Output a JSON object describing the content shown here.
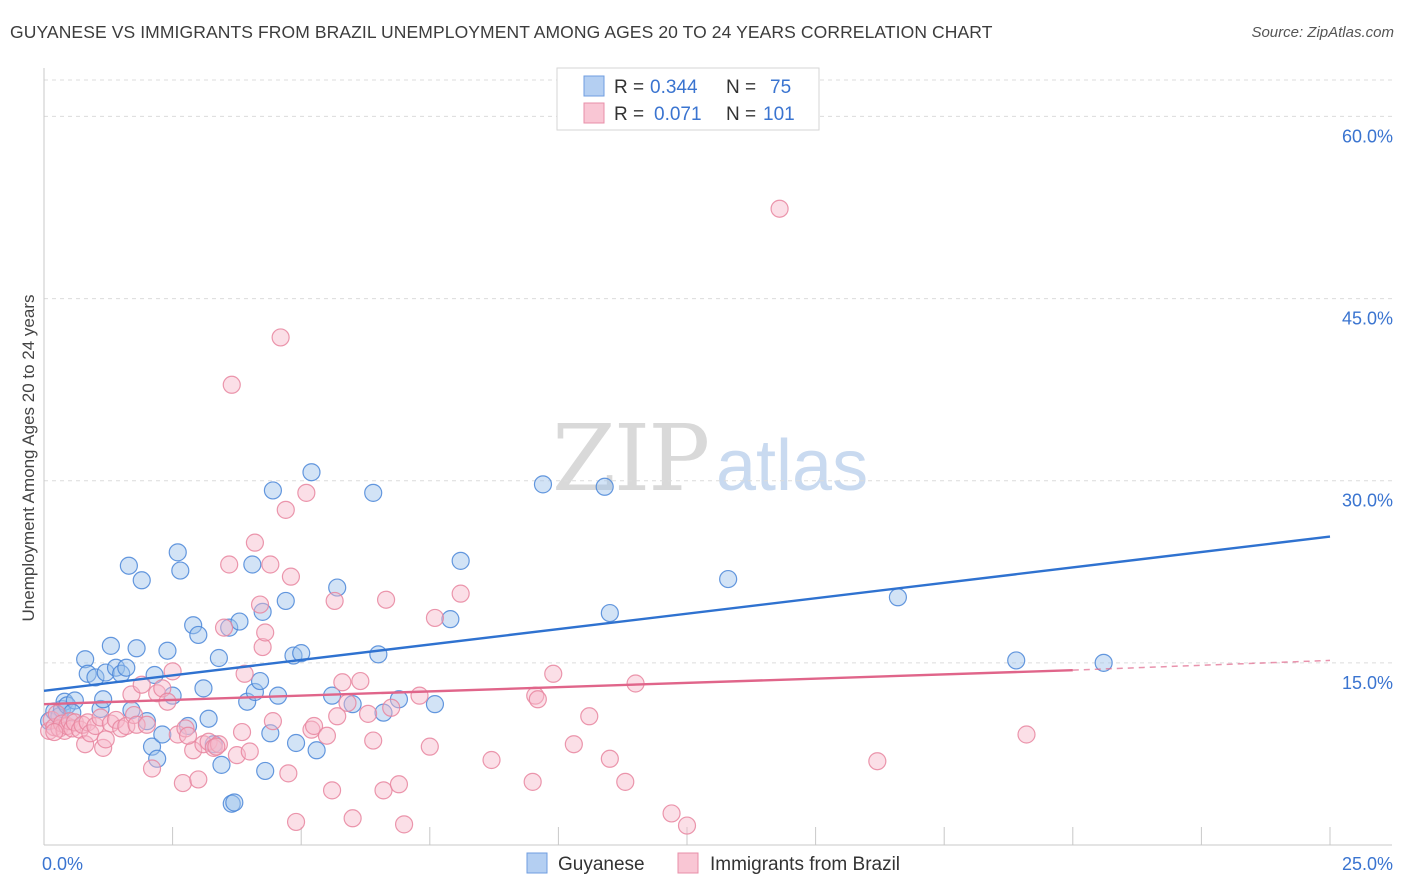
{
  "chart_data": {
    "type": "scatter",
    "title": "GUYANESE VS IMMIGRANTS FROM BRAZIL UNEMPLOYMENT AMONG AGES 20 TO 24 YEARS CORRELATION CHART",
    "source": "Source: ZipAtlas.com",
    "xlabel": "",
    "ylabel": "Unemployment Among Ages 20 to 24 years",
    "xlim": [
      0,
      25
    ],
    "ylim": [
      0,
      63
    ],
    "x_tick_labels": [
      {
        "value": 0,
        "label": "0.0%"
      },
      {
        "value": 25,
        "label": "25.0%"
      }
    ],
    "y_tick_labels": [
      {
        "value": 15,
        "label": "15.0%"
      },
      {
        "value": 30,
        "label": "30.0%"
      },
      {
        "value": 45,
        "label": "45.0%"
      },
      {
        "value": 60,
        "label": "60.0%"
      }
    ],
    "watermark": {
      "part1": "ZIP",
      "part2": "atlas"
    },
    "legend_stats": [
      {
        "r_label": "R =",
        "r_value": "0.344",
        "n_label": "N =",
        "n_value": "75"
      },
      {
        "r_label": "R =",
        "r_value": "0.071",
        "n_label": "N =",
        "n_value": "101"
      }
    ],
    "series": [
      {
        "name": "Guyanese",
        "color": "#4a86d8",
        "fill": "#9cc0ec",
        "line_color": "#2f72d0",
        "trend": {
          "x0": 0,
          "y0": 12.7,
          "x1": 25,
          "y1": 25.4
        },
        "points": [
          [
            0.1,
            10.2
          ],
          [
            0.2,
            11.0
          ],
          [
            0.3,
            10.6
          ],
          [
            0.35,
            11.2
          ],
          [
            0.4,
            11.8
          ],
          [
            0.45,
            11.5
          ],
          [
            0.6,
            11.9
          ],
          [
            0.55,
            10.9
          ],
          [
            0.8,
            15.3
          ],
          [
            0.85,
            14.1
          ],
          [
            1.0,
            13.8
          ],
          [
            1.1,
            11.2
          ],
          [
            1.15,
            12.0
          ],
          [
            1.2,
            14.2
          ],
          [
            1.3,
            16.4
          ],
          [
            1.4,
            14.6
          ],
          [
            1.5,
            14.1
          ],
          [
            1.6,
            14.6
          ],
          [
            1.65,
            23.0
          ],
          [
            1.8,
            16.2
          ],
          [
            1.9,
            21.8
          ],
          [
            2.0,
            10.2
          ],
          [
            2.1,
            8.1
          ],
          [
            2.15,
            14.0
          ],
          [
            2.2,
            7.1
          ],
          [
            2.3,
            9.1
          ],
          [
            2.4,
            16.0
          ],
          [
            2.5,
            12.3
          ],
          [
            2.6,
            24.1
          ],
          [
            2.65,
            22.6
          ],
          [
            2.8,
            9.8
          ],
          [
            2.9,
            18.1
          ],
          [
            3.0,
            17.3
          ],
          [
            3.1,
            12.9
          ],
          [
            3.2,
            10.4
          ],
          [
            3.3,
            8.3
          ],
          [
            3.4,
            15.4
          ],
          [
            3.45,
            6.6
          ],
          [
            3.6,
            17.9
          ],
          [
            3.65,
            3.4
          ],
          [
            3.7,
            3.5
          ],
          [
            3.8,
            18.4
          ],
          [
            3.95,
            11.8
          ],
          [
            4.05,
            23.1
          ],
          [
            4.1,
            12.6
          ],
          [
            4.2,
            13.5
          ],
          [
            4.25,
            19.2
          ],
          [
            4.3,
            6.1
          ],
          [
            4.4,
            9.2
          ],
          [
            4.45,
            29.2
          ],
          [
            4.55,
            12.3
          ],
          [
            4.7,
            20.1
          ],
          [
            4.85,
            15.6
          ],
          [
            5.0,
            15.8
          ],
          [
            5.2,
            30.7
          ],
          [
            5.3,
            7.8
          ],
          [
            5.6,
            12.3
          ],
          [
            5.7,
            21.2
          ],
          [
            6.0,
            11.6
          ],
          [
            6.4,
            29.0
          ],
          [
            6.5,
            15.7
          ],
          [
            6.6,
            10.9
          ],
          [
            6.9,
            12.0
          ],
          [
            7.6,
            11.6
          ],
          [
            7.9,
            18.6
          ],
          [
            8.1,
            23.4
          ],
          [
            9.7,
            29.7
          ],
          [
            10.9,
            29.5
          ],
          [
            11.0,
            19.1
          ],
          [
            13.3,
            21.9
          ],
          [
            16.6,
            20.4
          ],
          [
            18.9,
            15.2
          ],
          [
            20.6,
            15.0
          ],
          [
            1.7,
            11.1
          ],
          [
            4.9,
            8.4
          ]
        ]
      },
      {
        "name": "Immigrants from Brazil",
        "color": "#e8859f",
        "fill": "#f6b7c9",
        "line_color": "#e0658a",
        "trend": {
          "x0": 0,
          "y0": 11.6,
          "x1": 20,
          "y1": 14.4
        },
        "trend_dashed": {
          "x0": 20,
          "y0": 14.4,
          "x1": 25,
          "y1": 15.2
        },
        "points": [
          [
            0.1,
            9.4
          ],
          [
            0.15,
            10.3
          ],
          [
            0.2,
            9.7
          ],
          [
            0.25,
            10.8
          ],
          [
            0.3,
            9.6
          ],
          [
            0.35,
            10.0
          ],
          [
            0.4,
            9.4
          ],
          [
            0.45,
            9.8
          ],
          [
            0.5,
            10.2
          ],
          [
            0.55,
            9.6
          ],
          [
            0.6,
            10.1
          ],
          [
            0.7,
            9.5
          ],
          [
            0.75,
            9.9
          ],
          [
            0.8,
            8.3
          ],
          [
            0.85,
            10.1
          ],
          [
            0.9,
            9.2
          ],
          [
            1.0,
            9.8
          ],
          [
            1.1,
            10.5
          ],
          [
            1.15,
            8.0
          ],
          [
            1.3,
            10.0
          ],
          [
            1.4,
            10.3
          ],
          [
            1.5,
            9.6
          ],
          [
            1.6,
            9.8
          ],
          [
            1.7,
            12.4
          ],
          [
            1.75,
            10.7
          ],
          [
            1.8,
            9.9
          ],
          [
            1.9,
            13.2
          ],
          [
            2.0,
            9.9
          ],
          [
            2.1,
            6.3
          ],
          [
            2.2,
            12.5
          ],
          [
            2.3,
            12.9
          ],
          [
            2.4,
            11.8
          ],
          [
            2.5,
            14.3
          ],
          [
            2.6,
            9.1
          ],
          [
            2.7,
            5.1
          ],
          [
            2.75,
            9.6
          ],
          [
            2.9,
            7.8
          ],
          [
            3.0,
            5.4
          ],
          [
            3.1,
            8.3
          ],
          [
            3.2,
            8.5
          ],
          [
            3.3,
            8.0
          ],
          [
            3.4,
            8.3
          ],
          [
            3.5,
            17.9
          ],
          [
            3.6,
            23.1
          ],
          [
            3.65,
            37.9
          ],
          [
            3.75,
            7.4
          ],
          [
            3.85,
            9.3
          ],
          [
            3.9,
            14.1
          ],
          [
            4.0,
            7.7
          ],
          [
            4.1,
            24.9
          ],
          [
            4.2,
            19.8
          ],
          [
            4.25,
            16.3
          ],
          [
            4.3,
            17.5
          ],
          [
            4.4,
            23.1
          ],
          [
            4.45,
            10.2
          ],
          [
            4.6,
            41.8
          ],
          [
            4.7,
            27.6
          ],
          [
            4.75,
            5.9
          ],
          [
            4.8,
            22.1
          ],
          [
            4.9,
            1.9
          ],
          [
            5.1,
            29.0
          ],
          [
            5.2,
            9.5
          ],
          [
            5.25,
            9.8
          ],
          [
            5.5,
            9.0
          ],
          [
            5.6,
            4.5
          ],
          [
            5.65,
            20.1
          ],
          [
            5.7,
            10.6
          ],
          [
            5.8,
            13.4
          ],
          [
            5.9,
            11.7
          ],
          [
            6.0,
            2.2
          ],
          [
            6.15,
            13.5
          ],
          [
            6.3,
            10.8
          ],
          [
            6.4,
            8.6
          ],
          [
            6.6,
            4.5
          ],
          [
            6.65,
            20.2
          ],
          [
            6.75,
            11.3
          ],
          [
            6.9,
            5.0
          ],
          [
            7.0,
            1.7
          ],
          [
            7.3,
            12.3
          ],
          [
            7.5,
            8.1
          ],
          [
            7.6,
            18.7
          ],
          [
            8.1,
            20.7
          ],
          [
            8.7,
            7.0
          ],
          [
            9.5,
            5.2
          ],
          [
            9.55,
            12.3
          ],
          [
            9.6,
            12.0
          ],
          [
            9.9,
            14.1
          ],
          [
            10.3,
            8.3
          ],
          [
            10.6,
            10.6
          ],
          [
            11.0,
            7.1
          ],
          [
            11.3,
            5.2
          ],
          [
            11.5,
            13.3
          ],
          [
            12.2,
            2.6
          ],
          [
            12.5,
            1.6
          ],
          [
            14.3,
            52.4
          ],
          [
            16.2,
            6.9
          ],
          [
            19.1,
            9.1
          ],
          [
            0.2,
            9.3
          ],
          [
            1.2,
            8.7
          ],
          [
            2.8,
            9.0
          ],
          [
            3.35,
            8.1
          ]
        ]
      }
    ],
    "legend_bottom": [
      "Guyanese",
      "Immigrants from Brazil"
    ]
  }
}
